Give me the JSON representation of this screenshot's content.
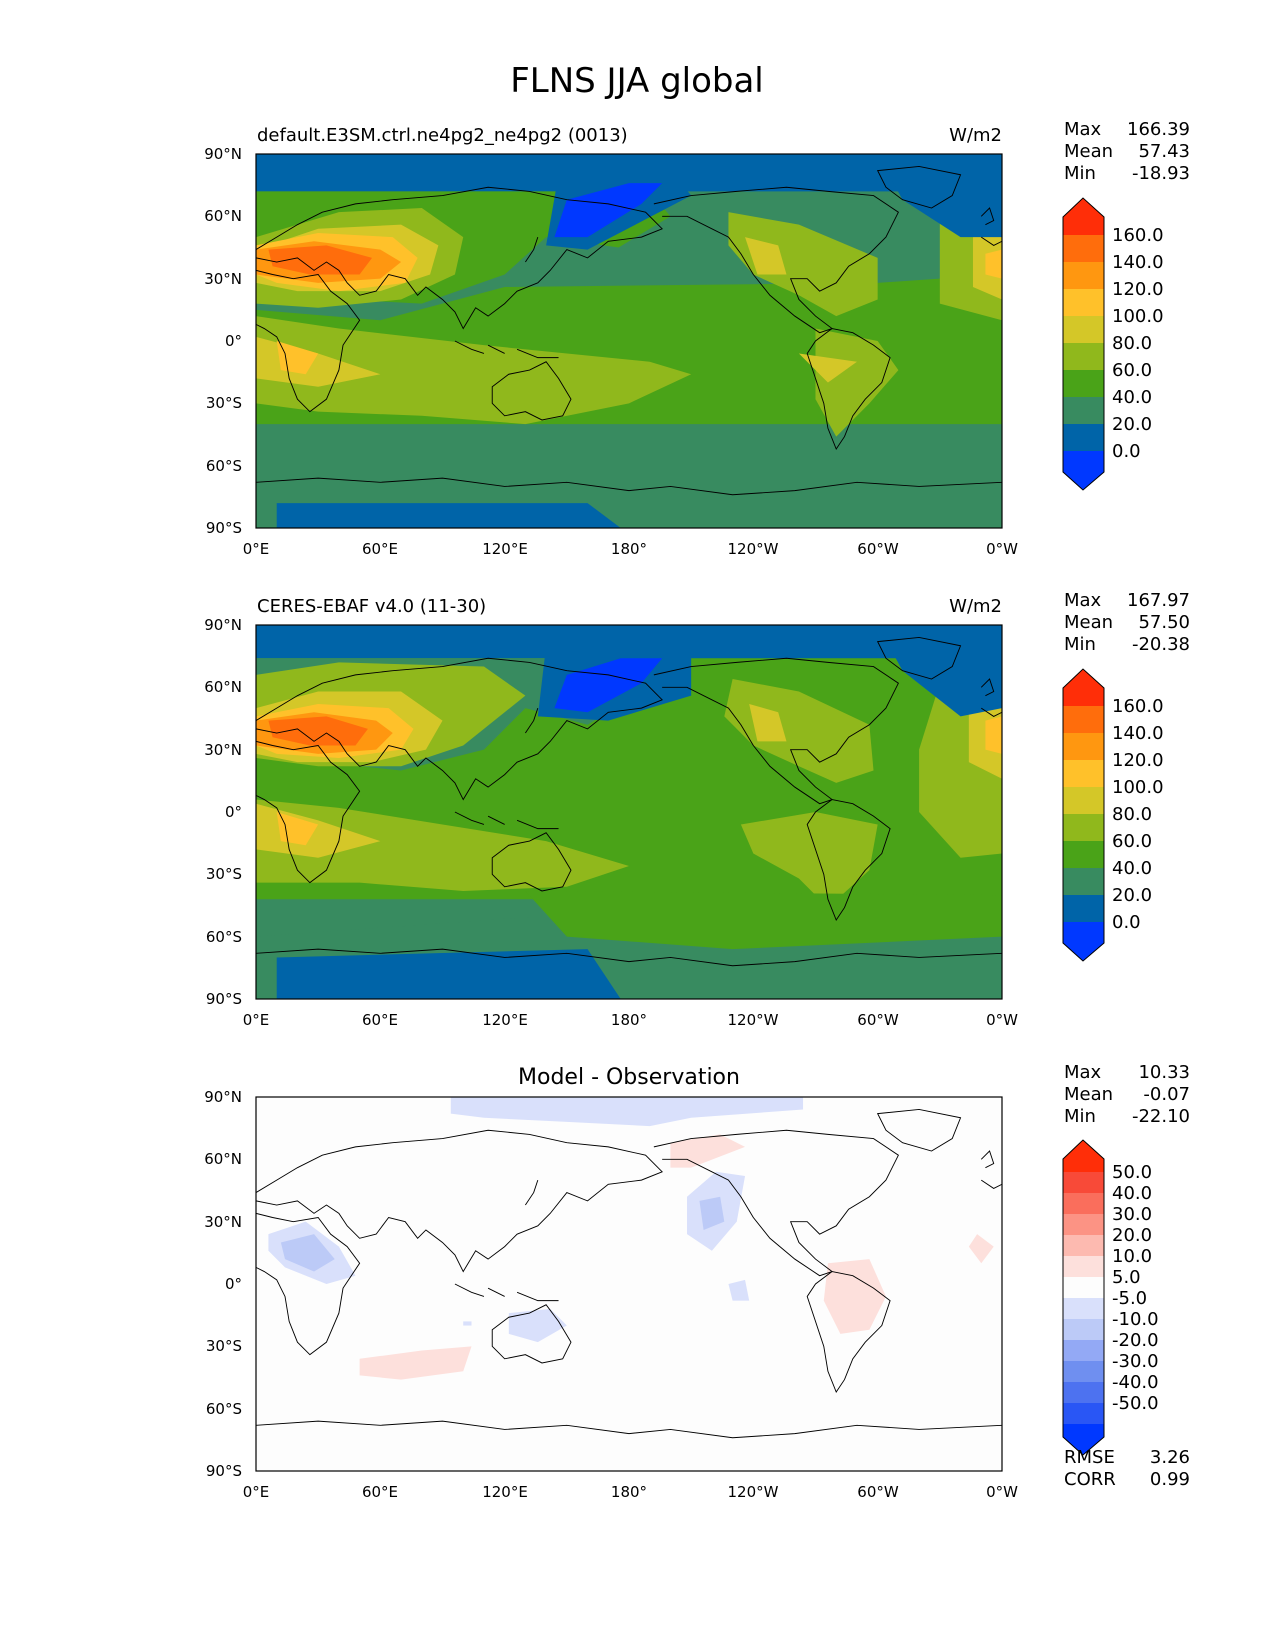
{
  "title": "FLNS JJA global",
  "colors": {
    "main_levels": [
      "#0038ff",
      "#0064a8",
      "#388b60",
      "#4aa318",
      "#90b81c",
      "#d4c728",
      "#ffc12a",
      "#ff9710",
      "#ff6d0c",
      "#ff2e08"
    ],
    "diff_levels": [
      "#0038ff",
      "#2956f5",
      "#4d72f0",
      "#6f8ff0",
      "#93a9f5",
      "#bccaf7",
      "#d9e0fb",
      "#fdfdfd",
      "#fde0dc",
      "#fdbab0",
      "#fc9384",
      "#fa6e5c",
      "#f84a38",
      "#ff2e08"
    ],
    "land_outline": "#000000"
  },
  "axes": {
    "lat_ticks": [
      "90°N",
      "60°N",
      "30°N",
      "0°",
      "30°S",
      "60°S",
      "90°S"
    ],
    "lon_ticks": [
      "0°E",
      "60°E",
      "120°E",
      "180°",
      "120°W",
      "60°W",
      "0°W"
    ]
  },
  "panels": [
    {
      "left_label": "default.E3SM.ctrl.ne4pg2_ne4pg2 (0013)",
      "units": "W/m2",
      "center_title": "",
      "stats": [
        [
          "Max",
          "166.39"
        ],
        [
          "Mean",
          "57.43"
        ],
        [
          "Min",
          "-18.93"
        ]
      ],
      "colorbar_ticks": [
        "160.0",
        "140.0",
        "120.0",
        "100.0",
        "80.0",
        "60.0",
        "40.0",
        "20.0",
        "0.0"
      ],
      "extra_stats": []
    },
    {
      "left_label": "CERES-EBAF v4.0 (11-30)",
      "units": "W/m2",
      "center_title": "",
      "stats": [
        [
          "Max",
          "167.97"
        ],
        [
          "Mean",
          "57.50"
        ],
        [
          "Min",
          "-20.38"
        ]
      ],
      "colorbar_ticks": [
        "160.0",
        "140.0",
        "120.0",
        "100.0",
        "80.0",
        "60.0",
        "40.0",
        "20.0",
        "0.0"
      ],
      "extra_stats": []
    },
    {
      "left_label": "",
      "units": "",
      "center_title": "Model - Observation",
      "stats": [
        [
          "Max",
          "10.33"
        ],
        [
          "Mean",
          "-0.07"
        ],
        [
          "Min",
          "-22.10"
        ]
      ],
      "colorbar_ticks": [
        "50.0",
        "40.0",
        "30.0",
        "20.0",
        "10.0",
        "5.0",
        "-5.0",
        "-10.0",
        "-20.0",
        "-30.0",
        "-40.0",
        "-50.0"
      ],
      "extra_stats": [
        [
          "RMSE",
          "3.26"
        ],
        [
          "CORR",
          "0.99"
        ]
      ]
    }
  ],
  "chart_data": [
    {
      "type": "heatmap",
      "title": "default.E3SM.ctrl.ne4pg2_ne4pg2 (0013)",
      "units": "W/m2",
      "x_range_lon": [
        0,
        360
      ],
      "y_range_lat": [
        -90,
        90
      ],
      "levels": [
        0,
        20,
        40,
        60,
        80,
        100,
        120,
        140,
        160
      ],
      "max": 166.39,
      "mean": 57.43,
      "min": -18.93
    },
    {
      "type": "heatmap",
      "title": "CERES-EBAF v4.0 (11-30)",
      "units": "W/m2",
      "x_range_lon": [
        0,
        360
      ],
      "y_range_lat": [
        -90,
        90
      ],
      "levels": [
        0,
        20,
        40,
        60,
        80,
        100,
        120,
        140,
        160
      ],
      "max": 167.97,
      "mean": 57.5,
      "min": -20.38
    },
    {
      "type": "heatmap",
      "title": "Model - Observation",
      "x_range_lon": [
        0,
        360
      ],
      "y_range_lat": [
        -90,
        90
      ],
      "levels": [
        -50,
        -40,
        -30,
        -20,
        -10,
        -5,
        5,
        10,
        20,
        30,
        40,
        50
      ],
      "max": 10.33,
      "mean": -0.07,
      "min": -22.1,
      "rmse": 3.26,
      "corr": 0.99
    }
  ]
}
